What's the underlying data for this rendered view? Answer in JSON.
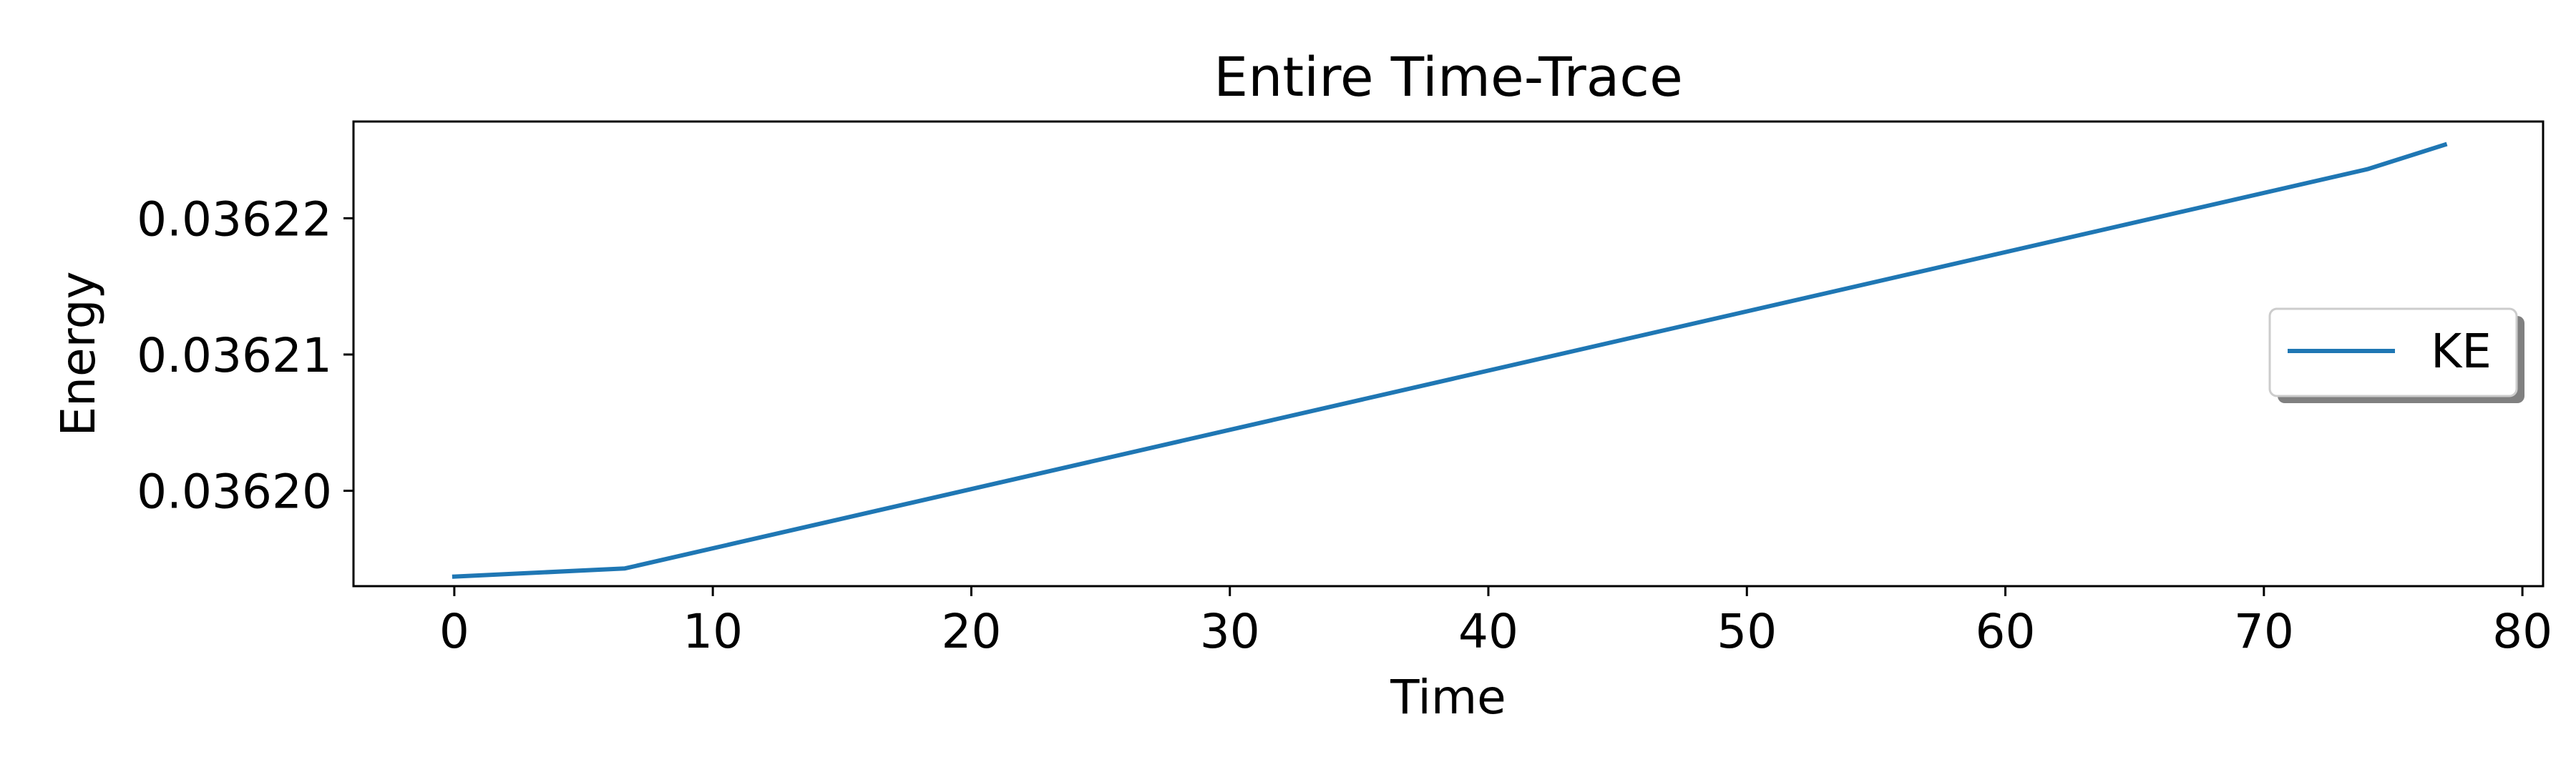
{
  "chart_data": {
    "type": "line",
    "title": "Entire Time-Trace",
    "xlabel": "Time",
    "ylabel": "Energy",
    "xlim": [
      -3.9,
      80.8
    ],
    "ylim": [
      0.036193,
      0.0362271
    ],
    "xticks": [
      0,
      10,
      20,
      30,
      40,
      50,
      60,
      70,
      80
    ],
    "xtick_labels": [
      "0",
      "10",
      "20",
      "30",
      "40",
      "50",
      "60",
      "70",
      "80"
    ],
    "yticks": [
      0.0362,
      0.03621,
      0.03622
    ],
    "ytick_labels": [
      "0.03620",
      "0.03621",
      "0.03622"
    ],
    "grid": false,
    "legend_position": "center-right",
    "series": [
      {
        "name": "KE",
        "color": "#1f77b4",
        "x": [
          0,
          6.6,
          74,
          77
        ],
        "y": [
          0.0361937,
          0.0361943,
          0.0362236,
          0.0362254
        ]
      }
    ]
  }
}
